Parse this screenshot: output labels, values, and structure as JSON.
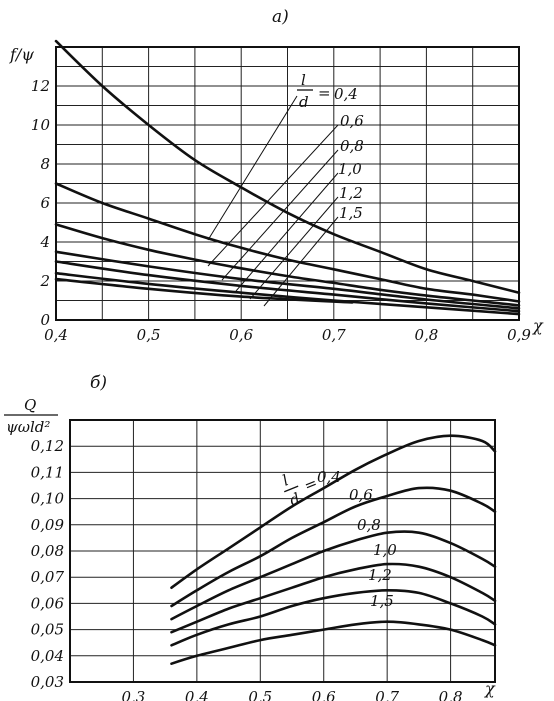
{
  "chart_data": [
    {
      "type": "line",
      "panel_label": "а)",
      "ylabel": "f/ψ",
      "xlabel": "χ",
      "xlim": [
        0.4,
        0.9
      ],
      "ylim": [
        0,
        14
      ],
      "x_ticks": [
        "0,4",
        "0,5",
        "0,6",
        "0,7",
        "0,8",
        "0,9"
      ],
      "y_ticks": [
        "0",
        "2",
        "4",
        "6",
        "8",
        "10",
        "12"
      ],
      "grid": true,
      "legend_param": {
        "num": "l",
        "den": "d",
        "eq": "="
      },
      "series": [
        {
          "name": "0,4",
          "x": [
            0.4,
            0.45,
            0.5,
            0.55,
            0.6,
            0.65,
            0.7,
            0.75,
            0.8,
            0.85,
            0.9
          ],
          "y": [
            14.3,
            12.0,
            10.0,
            8.2,
            6.8,
            5.5,
            4.4,
            3.5,
            2.6,
            2.0,
            1.4
          ]
        },
        {
          "name": "0,6",
          "x": [
            0.4,
            0.45,
            0.5,
            0.55,
            0.6,
            0.65,
            0.7,
            0.75,
            0.8,
            0.85,
            0.9
          ],
          "y": [
            7.0,
            6.0,
            5.2,
            4.4,
            3.7,
            3.1,
            2.6,
            2.1,
            1.6,
            1.3,
            0.95
          ]
        },
        {
          "name": "0,8",
          "x": [
            0.4,
            0.45,
            0.5,
            0.55,
            0.6,
            0.65,
            0.7,
            0.75,
            0.8,
            0.85,
            0.9
          ],
          "y": [
            4.9,
            4.2,
            3.6,
            3.1,
            2.65,
            2.25,
            1.9,
            1.55,
            1.25,
            1.0,
            0.75
          ]
        },
        {
          "name": "1,0",
          "x": [
            0.4,
            0.5,
            0.6,
            0.7,
            0.8,
            0.9
          ],
          "y": [
            3.5,
            2.75,
            2.1,
            1.6,
            1.05,
            0.6
          ]
        },
        {
          "name": "1,2",
          "x": [
            0.4,
            0.5,
            0.6,
            0.7,
            0.8,
            0.9
          ],
          "y": [
            3.0,
            2.3,
            1.75,
            1.3,
            0.85,
            0.45
          ]
        },
        {
          "name": "1,5",
          "x": [
            0.4,
            0.5,
            0.6,
            0.7,
            0.8,
            0.9
          ],
          "y": [
            2.4,
            1.85,
            1.4,
            1.0,
            0.65,
            0.3
          ]
        },
        {
          "name": "",
          "x": [
            0.4,
            0.5,
            0.6,
            0.72
          ],
          "y": [
            2.1,
            1.6,
            1.2,
            0.9
          ]
        }
      ]
    },
    {
      "type": "line",
      "panel_label": "б)",
      "ylabel_num": "Q",
      "ylabel_den": "ψωld²",
      "xlabel": "χ",
      "xlim": [
        0.2,
        0.87
      ],
      "ylim": [
        0.03,
        0.13
      ],
      "x_ticks": [
        "0,3",
        "0,4",
        "0,5",
        "0,6",
        "0,7",
        "0,8"
      ],
      "y_ticks": [
        "0,03",
        "0,04",
        "0,05",
        "0,06",
        "0,07",
        "0,08",
        "0,09",
        "0,10",
        "0,11",
        "0,12"
      ],
      "grid": true,
      "legend_param": {
        "num": "l",
        "den": "d",
        "eq": "="
      },
      "series": [
        {
          "name": "0,4",
          "x": [
            0.36,
            0.4,
            0.45,
            0.5,
            0.55,
            0.6,
            0.65,
            0.7,
            0.75,
            0.8,
            0.85,
            0.87
          ],
          "y": [
            0.066,
            0.073,
            0.081,
            0.089,
            0.097,
            0.104,
            0.111,
            0.117,
            0.122,
            0.124,
            0.122,
            0.118
          ]
        },
        {
          "name": "0,6",
          "x": [
            0.36,
            0.4,
            0.45,
            0.5,
            0.55,
            0.6,
            0.65,
            0.7,
            0.75,
            0.8,
            0.85,
            0.87
          ],
          "y": [
            0.059,
            0.065,
            0.072,
            0.078,
            0.085,
            0.091,
            0.097,
            0.101,
            0.104,
            0.103,
            0.098,
            0.095
          ]
        },
        {
          "name": "0,8",
          "x": [
            0.36,
            0.4,
            0.45,
            0.5,
            0.55,
            0.6,
            0.65,
            0.7,
            0.75,
            0.8,
            0.85,
            0.87
          ],
          "y": [
            0.054,
            0.059,
            0.065,
            0.07,
            0.075,
            0.08,
            0.084,
            0.087,
            0.087,
            0.083,
            0.077,
            0.074
          ]
        },
        {
          "name": "1,0",
          "x": [
            0.36,
            0.4,
            0.45,
            0.5,
            0.55,
            0.6,
            0.65,
            0.7,
            0.75,
            0.8,
            0.85,
            0.87
          ],
          "y": [
            0.049,
            0.053,
            0.058,
            0.062,
            0.066,
            0.07,
            0.073,
            0.075,
            0.074,
            0.07,
            0.064,
            0.061
          ]
        },
        {
          "name": "1,2",
          "x": [
            0.36,
            0.4,
            0.45,
            0.5,
            0.55,
            0.6,
            0.65,
            0.7,
            0.75,
            0.8,
            0.85,
            0.87
          ],
          "y": [
            0.044,
            0.048,
            0.052,
            0.055,
            0.059,
            0.062,
            0.064,
            0.065,
            0.064,
            0.06,
            0.055,
            0.052
          ]
        },
        {
          "name": "1,5",
          "x": [
            0.36,
            0.4,
            0.45,
            0.5,
            0.55,
            0.6,
            0.65,
            0.7,
            0.75,
            0.8,
            0.85,
            0.87
          ],
          "y": [
            0.037,
            0.04,
            0.043,
            0.046,
            0.048,
            0.05,
            0.052,
            0.053,
            0.052,
            0.05,
            0.046,
            0.044
          ]
        }
      ]
    }
  ]
}
